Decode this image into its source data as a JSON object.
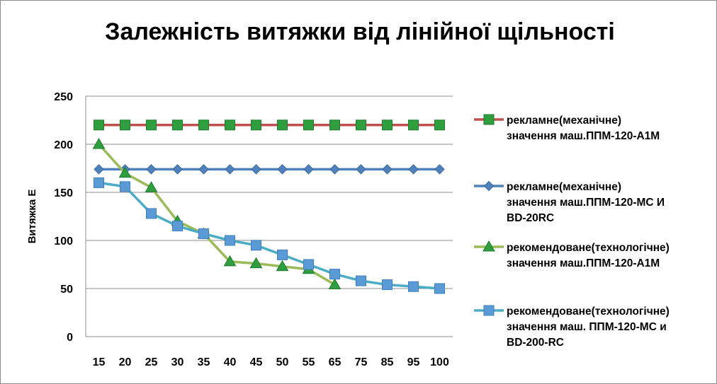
{
  "chart_data": {
    "type": "line",
    "title": "Залежність витяжки від лінійної щільності",
    "ylabel": "Витяжка Е",
    "xlabel": "",
    "categories": [
      "15",
      "20",
      "25",
      "30",
      "35",
      "40",
      "45",
      "50",
      "55",
      "65",
      "75",
      "85",
      "95",
      "100"
    ],
    "yticks": [
      "0",
      "50",
      "100",
      "150",
      "200",
      "250"
    ],
    "ylim": [
      0,
      250
    ],
    "grid": true,
    "legend_position": "right",
    "series": [
      {
        "name": "рекламне(механічне) значення маш.ППМ-120-А1М",
        "legend_lines": [
          "рекламне(механічне)",
          "значення маш.ППМ-120-А1М"
        ],
        "line_color": "#c0504d",
        "marker_color": "#2e9e3e",
        "marker_stroke": "#1f7a2c",
        "marker": "square",
        "values": [
          220,
          220,
          220,
          220,
          220,
          220,
          220,
          220,
          220,
          220,
          220,
          220,
          220,
          220
        ]
      },
      {
        "name": "рекламне(механічне) значення маш.ППМ-120-МС И BD-20RC",
        "legend_lines": [
          "рекламне(механічне)",
          "значення маш.ППМ-120-МС И",
          "BD-20RC"
        ],
        "line_color": "#4f81bd",
        "marker_color": "#4f81bd",
        "marker_stroke": "#3a6aa3",
        "marker": "diamond",
        "values": [
          174,
          174,
          174,
          174,
          174,
          174,
          174,
          174,
          174,
          174,
          174,
          174,
          174,
          174
        ]
      },
      {
        "name": "рекомендоване(технологічне) значення маш.ППМ-120-А1М",
        "legend_lines": [
          "рекомендоване(технологічне)",
          "значення маш.ППМ-120-А1М"
        ],
        "line_color": "#9bbb59",
        "marker_color": "#2e9e3e",
        "marker_stroke": "#1f7a2c",
        "marker": "triangle",
        "values": [
          200,
          170,
          155,
          120,
          107,
          78,
          76,
          73,
          70,
          54,
          null,
          null,
          null,
          null
        ]
      },
      {
        "name": "рекомендоване(технологічне) значення маш. ППМ-120-МС и BD-200-RC",
        "legend_lines": [
          "рекомендоване(технологічне)",
          "значення маш. ППМ-120-МС и",
          "BD-200-RC"
        ],
        "line_color": "#4bacc6",
        "marker_color": "#5b9bd5",
        "marker_stroke": "#3f7fbf",
        "marker": "square",
        "values": [
          160,
          156,
          128,
          115,
          107,
          100,
          95,
          85,
          75,
          65,
          58,
          54,
          52,
          50
        ]
      }
    ]
  }
}
